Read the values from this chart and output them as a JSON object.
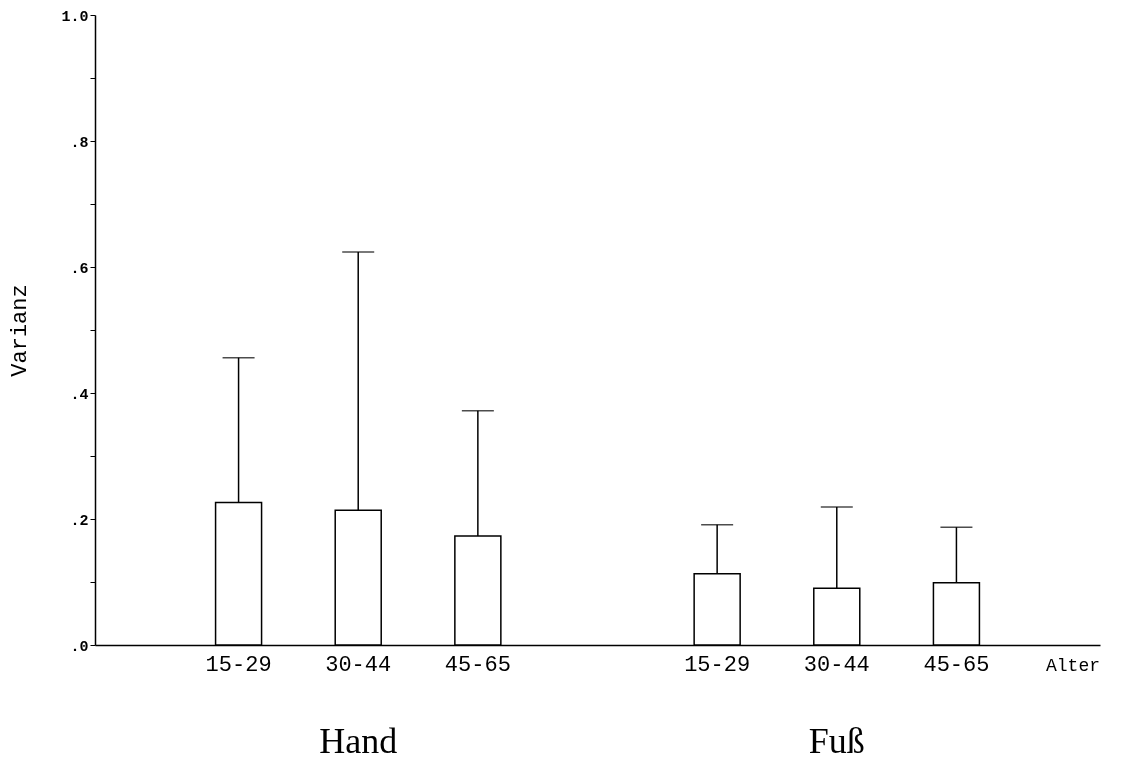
{
  "chart_data": {
    "type": "bar",
    "ylabel": "Varianz",
    "xlabel": "Alter",
    "categories": [
      null,
      "15-29",
      "30-44",
      "45-65",
      null,
      "15-29",
      "30-44",
      "45-65",
      null
    ],
    "values": [
      null,
      0.226,
      0.214,
      0.173,
      null,
      0.113,
      0.09,
      0.099,
      null
    ],
    "errors": [
      null,
      [
        0.226,
        0.456
      ],
      [
        0.214,
        0.624
      ],
      [
        0.173,
        0.372
      ],
      null,
      [
        0.113,
        0.191
      ],
      [
        0.09,
        0.219
      ],
      [
        0.099,
        0.187
      ],
      null
    ],
    "colors": [
      "#ffffff",
      "#ffffff",
      "#ffffff",
      "#ffffff",
      "#ffffff",
      "#ffffff",
      "#ffffff",
      "#ffffff",
      "#ffffff"
    ],
    "annotations": [
      "Hand",
      "Fuß"
    ],
    "ylim": [
      0,
      1.0
    ],
    "yticks": [
      {
        "value": 0,
        "label": ".0"
      },
      {
        "value": 0.1,
        "label": null
      },
      {
        "value": 0.2,
        "label": ".2"
      },
      {
        "value": 0.3,
        "label": null
      },
      {
        "value": 0.4,
        "label": ".4"
      },
      {
        "value": 0.5,
        "label": null
      },
      {
        "value": 0.6,
        "label": ".6"
      },
      {
        "value": 0.7,
        "label": null
      },
      {
        "value": 0.8,
        "label": ".8"
      },
      {
        "value": 0.9,
        "label": null
      },
      {
        "value": 1.0,
        "label": "1.0"
      }
    ],
    "grid": false
  }
}
